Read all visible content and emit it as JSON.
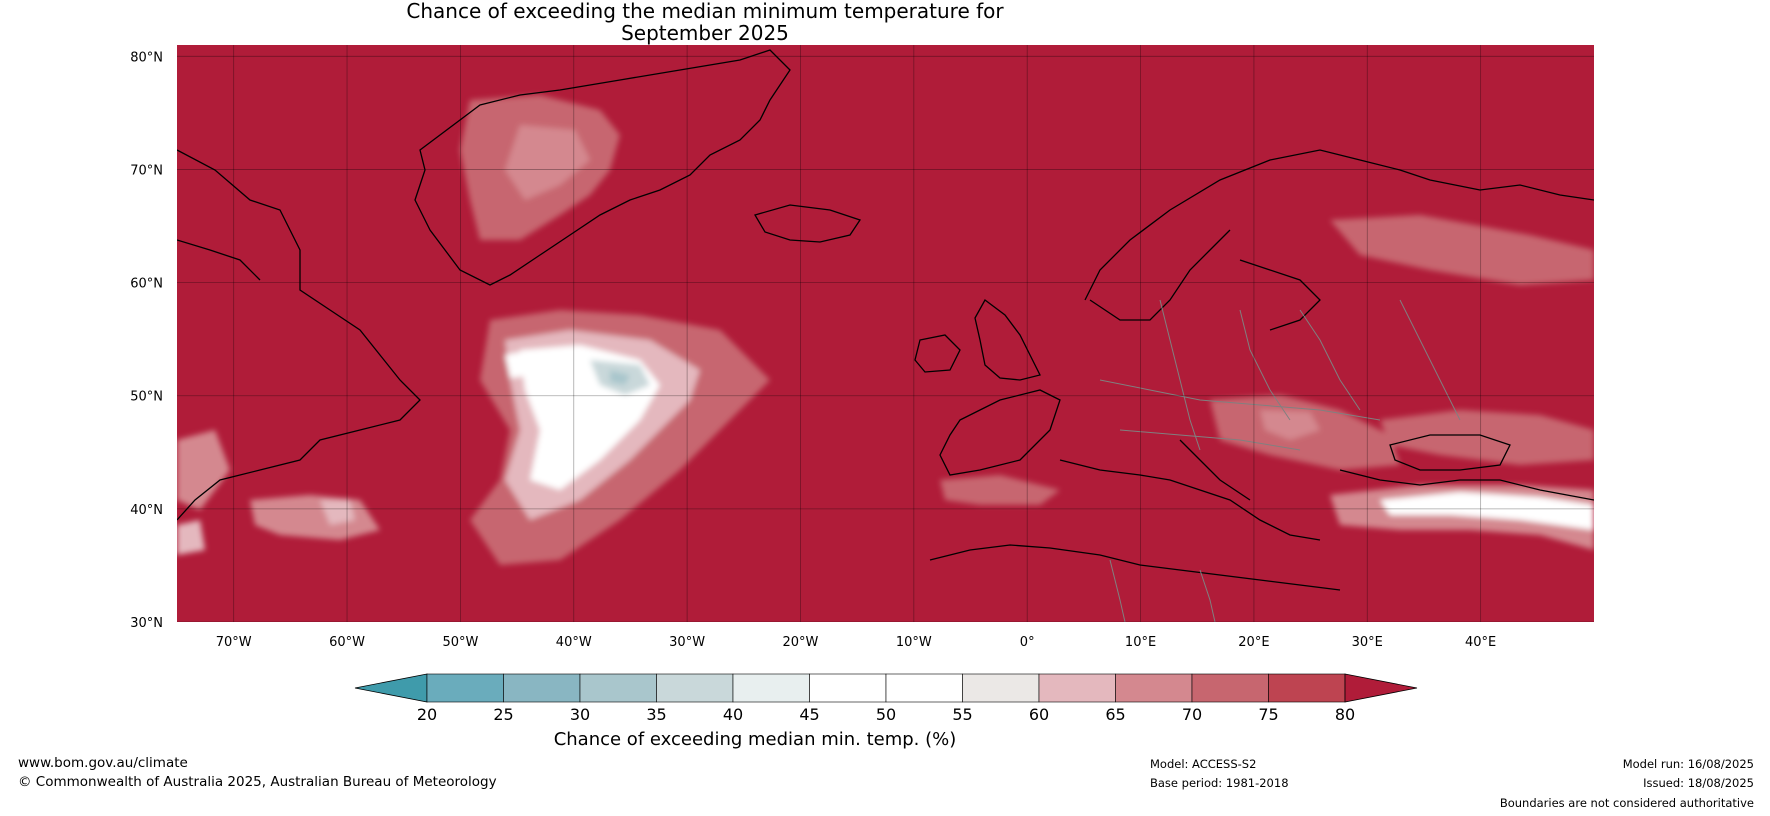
{
  "title": {
    "line1": "Chance of exceeding the median minimum temperature for",
    "line2": "September 2025"
  },
  "map": {
    "region": "North Atlantic and Europe",
    "latitude_labels": [
      "80°N",
      "70°N",
      "60°N",
      "50°N",
      "40°N",
      "30°N"
    ],
    "longitude_labels": [
      "70°W",
      "60°W",
      "50°W",
      "40°W",
      "30°W",
      "20°W",
      "10°W",
      "0°",
      "10°E",
      "20°E",
      "30°E",
      "40°E"
    ],
    "background_color": "#b01c39",
    "coastline_color": "#000000",
    "border_color": "#808080"
  },
  "colorbar": {
    "tick_labels": [
      "20",
      "25",
      "30",
      "35",
      "40",
      "45",
      "50",
      "55",
      "60",
      "65",
      "70",
      "75",
      "80"
    ],
    "label": "Chance of exceeding median min. temp. (%)",
    "extend": "both",
    "colors": [
      "#3f9bab",
      "#6aacbc",
      "#89b6c2",
      "#a9c6cc",
      "#c9d8da",
      "#e8efef",
      "#ffffff",
      "#ffffff",
      "#ebe8e6",
      "#e4b8be",
      "#d4888f",
      "#c7666f",
      "#be4451",
      "#b01c39"
    ]
  },
  "footer": {
    "website": "www.bom.gov.au/climate",
    "copyright": "© Commonwealth of Australia 2025, Australian Bureau of Meteorology",
    "model": "Model: ACCESS-S2",
    "base_period": "Base period: 1981-2018",
    "model_run": "Model run: 16/08/2025",
    "issued": "Issued: 18/08/2025",
    "disclaimer": "Boundaries are not considered authoritative"
  }
}
